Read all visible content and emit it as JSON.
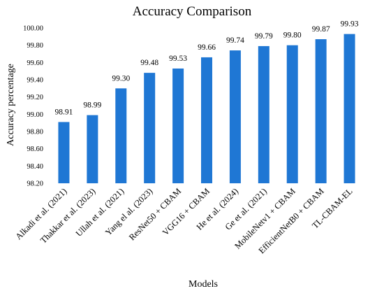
{
  "chart_data": {
    "type": "bar",
    "title": "Accuracy Comparison",
    "xlabel": "Models",
    "ylabel": "Accuracy percentage",
    "categories": [
      "Alkadi et al. (2021)",
      "Thakkar et al. (2023)",
      "Ullah et al. (2021)",
      "Yang el al. (2023)",
      "ResNet50 + CBAM",
      "VGG16 + CBAM",
      "He et al. (2024)",
      "Ge et al. (2021)",
      "MobileNetv1 + CBAM",
      "EfficientNetB0 + CBAM",
      "TL-CBAM-EL"
    ],
    "values": [
      98.91,
      98.99,
      99.3,
      99.48,
      99.53,
      99.66,
      99.74,
      99.79,
      99.8,
      99.87,
      99.93
    ],
    "value_labels": [
      "98.91",
      "98.99",
      "99.30",
      "99.48",
      "99.53",
      "99.66",
      "99.74",
      "99.79",
      "99.80",
      "99.87",
      "99.93"
    ],
    "ylim": [
      98.2,
      100.0
    ],
    "yticks": [
      "98.20",
      "98.40",
      "98.60",
      "98.80",
      "99.00",
      "99.20",
      "99.40",
      "99.60",
      "99.80",
      "100.00"
    ],
    "grid": false,
    "legend": "none",
    "bar_color": "#1f77d4"
  }
}
